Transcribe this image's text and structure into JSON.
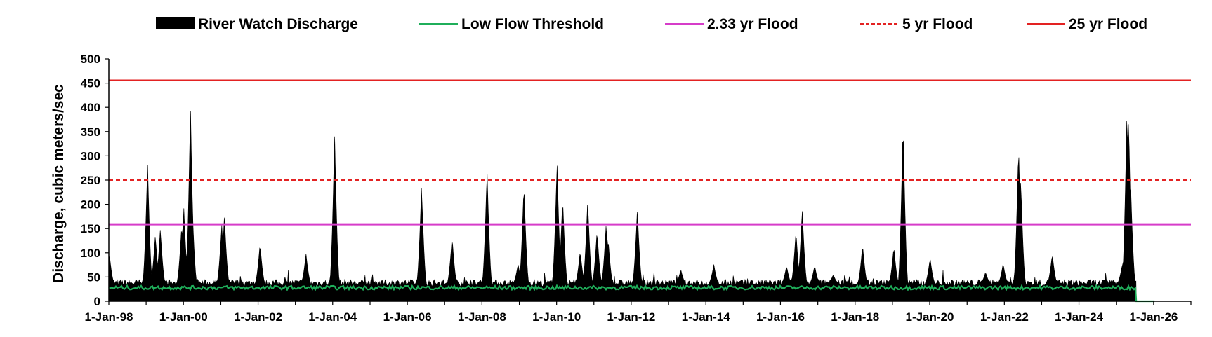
{
  "chart_data": {
    "type": "area",
    "title": "",
    "ylabel": "Discharge, cubic meters/sec",
    "xlabel": "",
    "ylim": [
      0,
      500
    ],
    "y_ticks": [
      0,
      50,
      100,
      150,
      200,
      250,
      300,
      350,
      400,
      450,
      500
    ],
    "x_range": [
      "1998-01-01",
      "2027-01-01"
    ],
    "x_tick_labels": [
      "1-Jan-98",
      "1-Jan-00",
      "1-Jan-02",
      "1-Jan-04",
      "1-Jan-06",
      "1-Jan-08",
      "1-Jan-10",
      "1-Jan-12",
      "1-Jan-14",
      "1-Jan-16",
      "1-Jan-18",
      "1-Jan-20",
      "1-Jan-22",
      "1-Jan-24",
      "1-Jan-26"
    ],
    "x_tick_dates": [
      "1998-01-01",
      "2000-01-01",
      "2002-01-01",
      "2004-01-01",
      "2006-01-01",
      "2008-01-01",
      "2010-01-01",
      "2012-01-01",
      "2014-01-01",
      "2016-01-01",
      "2018-01-01",
      "2020-01-01",
      "2022-01-01",
      "2024-01-01",
      "2026-01-01"
    ],
    "legend_position": "top",
    "grid": false,
    "series": [
      {
        "name": "River Watch Discharge",
        "style": "area",
        "color": "#000000",
        "base_level": 38,
        "end_date": "2025-07-15",
        "peaks": [
          [
            "1998-01-05",
            100
          ],
          [
            "1999-01-15",
            285
          ],
          [
            "1999-04-01",
            137
          ],
          [
            "1999-05-20",
            150
          ],
          [
            "1999-12-15",
            158
          ],
          [
            "2000-01-05",
            192
          ],
          [
            "2000-03-10",
            405
          ],
          [
            "2000-03-25",
            210
          ],
          [
            "2001-01-10",
            158
          ],
          [
            "2001-02-05",
            177
          ],
          [
            "2002-01-20",
            119
          ],
          [
            "2003-04-15",
            98
          ],
          [
            "2004-01-20",
            345
          ],
          [
            "2006-05-20",
            239
          ],
          [
            "2007-03-15",
            134
          ],
          [
            "2008-02-20",
            273
          ],
          [
            "2008-12-20",
            77
          ],
          [
            "2009-02-15",
            243
          ],
          [
            "2010-01-05",
            288
          ],
          [
            "2010-03-01",
            215
          ],
          [
            "2010-08-20",
            104
          ],
          [
            "2010-11-01",
            210
          ],
          [
            "2011-02-01",
            147
          ],
          [
            "2011-05-01",
            161
          ],
          [
            "2011-05-20",
            130
          ],
          [
            "2012-03-01",
            191
          ],
          [
            "2013-05-01",
            65
          ],
          [
            "2014-03-20",
            76
          ],
          [
            "2016-03-01",
            73
          ],
          [
            "2016-06-01",
            146
          ],
          [
            "2016-08-01",
            192
          ],
          [
            "2016-12-01",
            74
          ],
          [
            "2017-06-01",
            55
          ],
          [
            "2018-03-15",
            117
          ],
          [
            "2019-01-15",
            113
          ],
          [
            "2019-04-15",
            374
          ],
          [
            "2020-01-05",
            89
          ],
          [
            "2021-07-01",
            60
          ],
          [
            "2021-12-20",
            78
          ],
          [
            "2022-05-20",
            325
          ],
          [
            "2022-06-10",
            255
          ],
          [
            "2023-04-15",
            98
          ],
          [
            "2025-03-01",
            77
          ],
          [
            "2025-04-15",
            398
          ],
          [
            "2025-05-01",
            385
          ],
          [
            "2025-05-20",
            250
          ]
        ]
      },
      {
        "name": "Low Flow Threshold",
        "style": "line",
        "color": "#1fae5a",
        "base_level": 28,
        "end_date": "2025-07-15",
        "tail": {
          "value": 0,
          "end_date": "2026-01-10"
        }
      },
      {
        "name": "2.33 yr Flood",
        "style": "hline",
        "color": "#d63cc9",
        "dash": "solid",
        "value": 158
      },
      {
        "name": "5 yr Flood",
        "style": "hline",
        "color": "#e32222",
        "dash": "dashed",
        "value": 250
      },
      {
        "name": "25 yr Flood",
        "style": "hline",
        "color": "#e32222",
        "dash": "solid",
        "value": 456
      }
    ]
  }
}
